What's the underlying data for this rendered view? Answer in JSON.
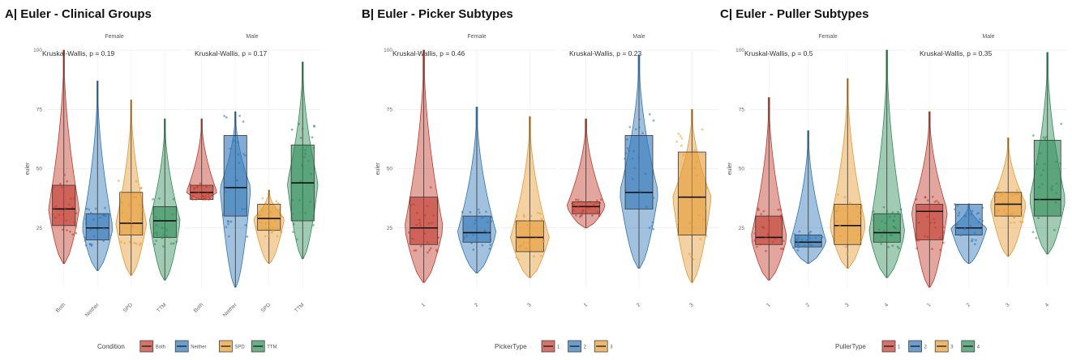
{
  "chart_data": [
    {
      "type": "violin-box",
      "title": "A| Euler - Clinical Groups",
      "ylabel": "euler",
      "ylim": [
        0,
        100
      ],
      "yticks": [
        25,
        50,
        75,
        100
      ],
      "facets": [
        {
          "name": "Female",
          "stat": "Kruskal-Wallis, p = 0.19",
          "groups": [
            {
              "label": "Both",
              "color": "#c0392b",
              "min": 10,
              "q1": 26,
              "median": 33,
              "q3": 43,
              "max": 100
            },
            {
              "label": "Neither",
              "color": "#2e75b6",
              "min": 7,
              "q1": 20,
              "median": 25,
              "q3": 31,
              "max": 87
            },
            {
              "label": "SPD",
              "color": "#e59a32",
              "min": 5,
              "q1": 22,
              "median": 27,
              "q3": 40,
              "max": 79
            },
            {
              "label": "TTM",
              "color": "#2e8b57",
              "min": 3,
              "q1": 21,
              "median": 28,
              "q3": 34,
              "max": 71
            }
          ]
        },
        {
          "name": "Male",
          "stat": "Kruskal-Wallis, p = 0.17",
          "groups": [
            {
              "label": "Both",
              "color": "#c0392b",
              "min": 37,
              "q1": 37,
              "median": 40,
              "q3": 43,
              "max": 71
            },
            {
              "label": "Neither",
              "color": "#2e75b6",
              "min": 0,
              "q1": 30,
              "median": 42,
              "q3": 64,
              "max": 74
            },
            {
              "label": "SPD",
              "color": "#e59a32",
              "min": 10,
              "q1": 24,
              "median": 29,
              "q3": 35,
              "max": 41
            },
            {
              "label": "TTM",
              "color": "#2e8b57",
              "min": 12,
              "q1": 28,
              "median": 44,
              "q3": 60,
              "max": 95
            }
          ]
        }
      ],
      "legend": {
        "title": "Condition",
        "entries": [
          "Both",
          "Neither",
          "SPD",
          "TTM"
        ]
      }
    },
    {
      "type": "violin-box",
      "title": "B| Euler - Picker Subtypes",
      "ylabel": "euler",
      "ylim": [
        0,
        100
      ],
      "yticks": [
        25,
        50,
        75,
        100
      ],
      "facets": [
        {
          "name": "Female",
          "stat": "Kruskal-Wallis, p = 0.46",
          "groups": [
            {
              "label": "1",
              "color": "#c0392b",
              "min": 2,
              "q1": 18,
              "median": 25,
              "q3": 38,
              "max": 100
            },
            {
              "label": "2",
              "color": "#2e75b6",
              "min": 6,
              "q1": 19,
              "median": 23,
              "q3": 30,
              "max": 76
            },
            {
              "label": "3",
              "color": "#e59a32",
              "min": 4,
              "q1": 15,
              "median": 21,
              "q3": 28,
              "max": 72
            }
          ]
        },
        {
          "name": "Male",
          "stat": "Kruskal-Wallis, p = 0.23",
          "groups": [
            {
              "label": "1",
              "color": "#c0392b",
              "min": 25,
              "q1": 31,
              "median": 34,
              "q3": 36,
              "max": 71
            },
            {
              "label": "2",
              "color": "#2e75b6",
              "min": 8,
              "q1": 33,
              "median": 40,
              "q3": 64,
              "max": 98
            },
            {
              "label": "3",
              "color": "#e59a32",
              "min": 2,
              "q1": 22,
              "median": 38,
              "q3": 57,
              "max": 75
            }
          ]
        }
      ],
      "legend": {
        "title": "PickerType",
        "entries": [
          "1",
          "2",
          "3"
        ]
      }
    },
    {
      "type": "violin-box",
      "title": "C| Euler - Puller Subtypes",
      "ylabel": "euler",
      "ylim": [
        0,
        100
      ],
      "yticks": [
        25,
        50,
        75,
        100
      ],
      "facets": [
        {
          "name": "Female",
          "stat": "Kruskal-Wallis, p = 0.5",
          "groups": [
            {
              "label": "1",
              "color": "#c0392b",
              "min": 3,
              "q1": 18,
              "median": 21,
              "q3": 30,
              "max": 80
            },
            {
              "label": "2",
              "color": "#2e75b6",
              "min": 10,
              "q1": 17,
              "median": 19,
              "q3": 22,
              "max": 66
            },
            {
              "label": "3",
              "color": "#e59a32",
              "min": 8,
              "q1": 18,
              "median": 26,
              "q3": 35,
              "max": 88
            },
            {
              "label": "4",
              "color": "#2e8b57",
              "min": 4,
              "q1": 19,
              "median": 23,
              "q3": 31,
              "max": 100
            }
          ]
        },
        {
          "name": "Male",
          "stat": "Kruskal-Wallis, p = 0.35",
          "groups": [
            {
              "label": "1",
              "color": "#c0392b",
              "min": 0,
              "q1": 20,
              "median": 32,
              "q3": 35,
              "max": 74
            },
            {
              "label": "2",
              "color": "#2e75b6",
              "min": 10,
              "q1": 22,
              "median": 25,
              "q3": 35,
              "max": 35
            },
            {
              "label": "3",
              "color": "#e59a32",
              "min": 13,
              "q1": 30,
              "median": 35,
              "q3": 40,
              "max": 63
            },
            {
              "label": "4",
              "color": "#2e8b57",
              "min": 14,
              "q1": 30,
              "median": 37,
              "q3": 62,
              "max": 99
            }
          ]
        }
      ],
      "legend": {
        "title": "PullerType",
        "entries": [
          "1",
          "2",
          "3",
          "4"
        ]
      }
    }
  ]
}
